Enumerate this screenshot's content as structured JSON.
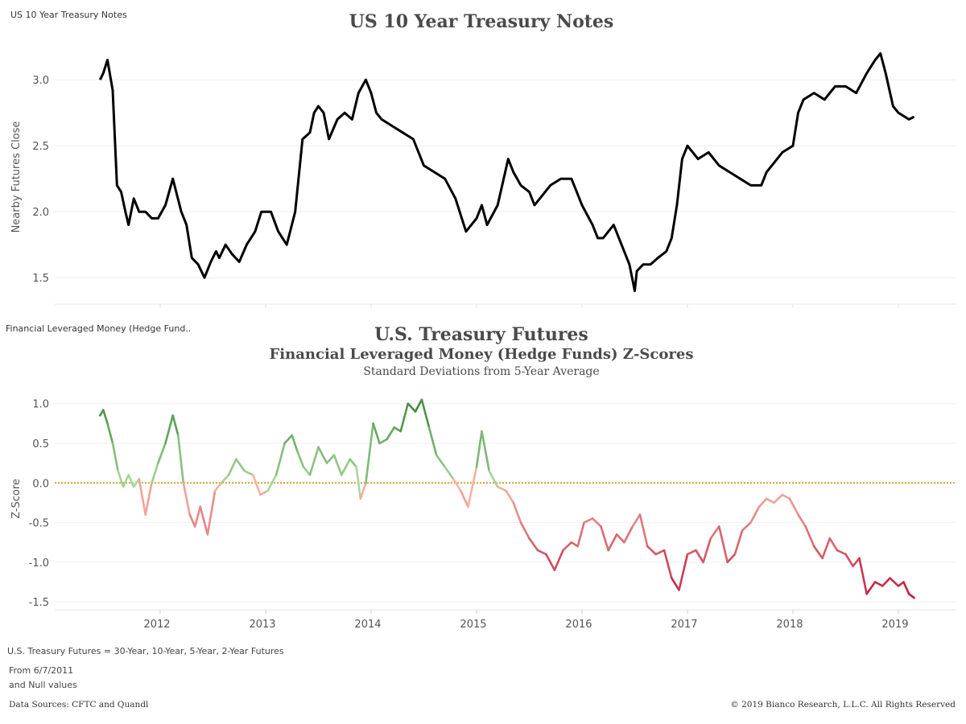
{
  "top_chart": {
    "sheet_name": "US 10 Year Treasury Notes",
    "title": "US 10 Year Treasury Notes"
  },
  "bottom_chart": {
    "sheet_name": "Financial Leveraged Money (Hedge Fund..",
    "title": "U.S. Treasury Futures",
    "subtitle": "Financial Leveraged Money (Hedge Funds) Z-Scores",
    "subtitle2": "Standard Deviations from 5-Year Average"
  },
  "footer": {
    "futures_note": "U.S. Treasury Futures = 30-Year, 10-Year, 5-Year, 2-Year Futures",
    "from_note": "From 6/7/2011",
    "null_note": "and Null values",
    "sources": "Data Sources: CFTC and Quandl",
    "copyright": "© 2019 Bianco Research, L.L.C. All Rights Reserved"
  },
  "colors": {
    "line_top": "#000000",
    "positive_strong": "#3d8b3d",
    "positive_light": "#a8d89a",
    "negative_light": "#f5b8a5",
    "negative_strong": "#c0183c",
    "zero_line": "#d08a00"
  },
  "chart_data": [
    {
      "type": "line",
      "title": "US 10 Year Treasury Notes",
      "xlabel": "",
      "ylabel": "Nearby Futures Close",
      "ylim": [
        1.3,
        3.3
      ],
      "yticks": [
        1.5,
        2.0,
        2.5,
        3.0
      ],
      "ytick_labels": [
        "1.5",
        "2.0",
        "2.5",
        "3.0"
      ],
      "grid": true,
      "series": [
        {
          "x": [
            2011.43,
            2011.46,
            2011.5,
            2011.55,
            2011.59,
            2011.63,
            2011.67,
            2011.7,
            2011.75,
            2011.8,
            2011.86,
            2011.92,
            2011.98,
            2012.05,
            2012.12,
            2012.2,
            2012.25,
            2012.3,
            2012.36,
            2012.42,
            2012.48,
            2012.53,
            2012.56,
            2012.62,
            2012.68,
            2012.75,
            2012.82,
            2012.9,
            2012.96,
            2013.05,
            2013.12,
            2013.2,
            2013.28,
            2013.35,
            2013.42,
            2013.46,
            2013.5,
            2013.55,
            2013.6,
            2013.68,
            2013.75,
            2013.82,
            2013.88,
            2013.95,
            2014.0,
            2014.05,
            2014.1,
            2014.2,
            2014.3,
            2014.4,
            2014.5,
            2014.6,
            2014.7,
            2014.8,
            2014.9,
            2015.0,
            2015.05,
            2015.1,
            2015.2,
            2015.3,
            2015.35,
            2015.42,
            2015.5,
            2015.55,
            2015.6,
            2015.7,
            2015.8,
            2015.9,
            2016.0,
            2016.1,
            2016.15,
            2016.2,
            2016.3,
            2016.4,
            2016.45,
            2016.5,
            2016.52,
            2016.58,
            2016.65,
            2016.72,
            2016.8,
            2016.85,
            2016.9,
            2016.95,
            2017.0,
            2017.1,
            2017.2,
            2017.3,
            2017.4,
            2017.5,
            2017.6,
            2017.7,
            2017.75,
            2017.8,
            2017.9,
            2018.0,
            2018.05,
            2018.1,
            2018.2,
            2018.3,
            2018.35,
            2018.4,
            2018.5,
            2018.6,
            2018.7,
            2018.78,
            2018.83,
            2018.88,
            2018.95,
            2019.0,
            2019.1,
            2019.15
          ],
          "y": [
            3.0,
            3.05,
            3.15,
            2.92,
            2.2,
            2.15,
            2.0,
            1.9,
            2.1,
            2.0,
            2.0,
            1.95,
            1.95,
            2.05,
            2.25,
            2.0,
            1.9,
            1.65,
            1.6,
            1.5,
            1.62,
            1.7,
            1.65,
            1.75,
            1.68,
            1.62,
            1.75,
            1.85,
            2.0,
            2.0,
            1.85,
            1.75,
            2.0,
            2.55,
            2.6,
            2.75,
            2.8,
            2.75,
            2.55,
            2.7,
            2.75,
            2.7,
            2.9,
            3.0,
            2.9,
            2.75,
            2.7,
            2.65,
            2.6,
            2.55,
            2.35,
            2.3,
            2.25,
            2.1,
            1.85,
            1.95,
            2.05,
            1.9,
            2.05,
            2.4,
            2.3,
            2.2,
            2.15,
            2.05,
            2.1,
            2.2,
            2.25,
            2.25,
            2.05,
            1.9,
            1.8,
            1.8,
            1.9,
            1.7,
            1.6,
            1.4,
            1.55,
            1.6,
            1.6,
            1.65,
            1.7,
            1.8,
            2.05,
            2.4,
            2.5,
            2.4,
            2.45,
            2.35,
            2.3,
            2.25,
            2.2,
            2.2,
            2.3,
            2.35,
            2.45,
            2.5,
            2.75,
            2.85,
            2.9,
            2.85,
            2.9,
            2.95,
            2.95,
            2.9,
            3.05,
            3.15,
            3.2,
            3.05,
            2.8,
            2.75,
            2.7,
            2.72
          ],
          "name": ""
        }
      ]
    },
    {
      "type": "line",
      "title": "U.S. Treasury Futures",
      "subtitle": "Financial Leveraged Money (Hedge Funds) Z-Scores",
      "subtitle2": "Standard Deviations from 5-Year Average",
      "xlabel": "",
      "ylabel": "Z-Score",
      "ylim": [
        -1.6,
        1.2
      ],
      "xlim": [
        2011.0,
        2019.55
      ],
      "yticks": [
        -1.5,
        -1.0,
        -0.5,
        0.0,
        0.5,
        1.0
      ],
      "ytick_labels": [
        "-1.5",
        "-1.0",
        "-0.5",
        "0.0",
        "0.5",
        "1.0"
      ],
      "xticks": [
        2012,
        2013,
        2014,
        2015,
        2016,
        2017,
        2018,
        2019
      ],
      "xtick_labels": [
        "2012",
        "2013",
        "2014",
        "2015",
        "2016",
        "2017",
        "2018",
        "2019"
      ],
      "reference_line": 0.0,
      "grid": true,
      "series": [
        {
          "x": [
            2011.43,
            2011.46,
            2011.5,
            2011.55,
            2011.6,
            2011.65,
            2011.7,
            2011.75,
            2011.8,
            2011.86,
            2011.92,
            2011.98,
            2012.05,
            2012.12,
            2012.17,
            2012.22,
            2012.28,
            2012.33,
            2012.38,
            2012.45,
            2012.52,
            2012.58,
            2012.65,
            2012.72,
            2012.8,
            2012.88,
            2012.95,
            2013.02,
            2013.1,
            2013.18,
            2013.25,
            2013.3,
            2013.36,
            2013.42,
            2013.5,
            2013.58,
            2013.65,
            2013.72,
            2013.8,
            2013.86,
            2013.9,
            2013.95,
            2014.02,
            2014.08,
            2014.15,
            2014.22,
            2014.28,
            2014.35,
            2014.42,
            2014.48,
            2014.55,
            2014.62,
            2014.7,
            2014.78,
            2014.85,
            2014.92,
            2015.0,
            2015.05,
            2015.12,
            2015.2,
            2015.28,
            2015.35,
            2015.42,
            2015.5,
            2015.58,
            2015.66,
            2015.74,
            2015.82,
            2015.9,
            2015.96,
            2016.02,
            2016.1,
            2016.18,
            2016.25,
            2016.33,
            2016.4,
            2016.48,
            2016.55,
            2016.62,
            2016.7,
            2016.78,
            2016.85,
            2016.92,
            2017.0,
            2017.08,
            2017.15,
            2017.22,
            2017.3,
            2017.38,
            2017.45,
            2017.52,
            2017.6,
            2017.68,
            2017.75,
            2017.82,
            2017.9,
            2017.97,
            2018.05,
            2018.12,
            2018.2,
            2018.28,
            2018.35,
            2018.42,
            2018.5,
            2018.57,
            2018.63,
            2018.7,
            2018.78,
            2018.85,
            2018.92,
            2019.0,
            2019.05,
            2019.1,
            2019.15
          ],
          "y": [
            0.85,
            0.92,
            0.75,
            0.5,
            0.15,
            -0.05,
            0.1,
            -0.05,
            0.05,
            -0.4,
            0.0,
            0.25,
            0.5,
            0.85,
            0.6,
            0.0,
            -0.4,
            -0.55,
            -0.3,
            -0.65,
            -0.1,
            0.0,
            0.1,
            0.3,
            0.15,
            0.1,
            -0.15,
            -0.1,
            0.1,
            0.5,
            0.6,
            0.4,
            0.2,
            0.1,
            0.45,
            0.25,
            0.35,
            0.1,
            0.3,
            0.2,
            -0.2,
            0.0,
            0.75,
            0.5,
            0.55,
            0.7,
            0.65,
            1.0,
            0.9,
            1.05,
            0.7,
            0.35,
            0.2,
            0.05,
            -0.1,
            -0.3,
            0.2,
            0.65,
            0.15,
            -0.05,
            -0.1,
            -0.25,
            -0.5,
            -0.7,
            -0.85,
            -0.9,
            -1.1,
            -0.85,
            -0.75,
            -0.8,
            -0.5,
            -0.45,
            -0.55,
            -0.85,
            -0.65,
            -0.75,
            -0.55,
            -0.4,
            -0.8,
            -0.9,
            -0.85,
            -1.2,
            -1.35,
            -0.9,
            -0.85,
            -1.0,
            -0.7,
            -0.55,
            -1.0,
            -0.9,
            -0.6,
            -0.5,
            -0.3,
            -0.2,
            -0.25,
            -0.15,
            -0.2,
            -0.4,
            -0.55,
            -0.8,
            -0.95,
            -0.7,
            -0.85,
            -0.9,
            -1.05,
            -0.95,
            -1.4,
            -1.25,
            -1.3,
            -1.2,
            -1.3,
            -1.25,
            -1.4,
            -1.45
          ],
          "name": ""
        }
      ]
    }
  ]
}
